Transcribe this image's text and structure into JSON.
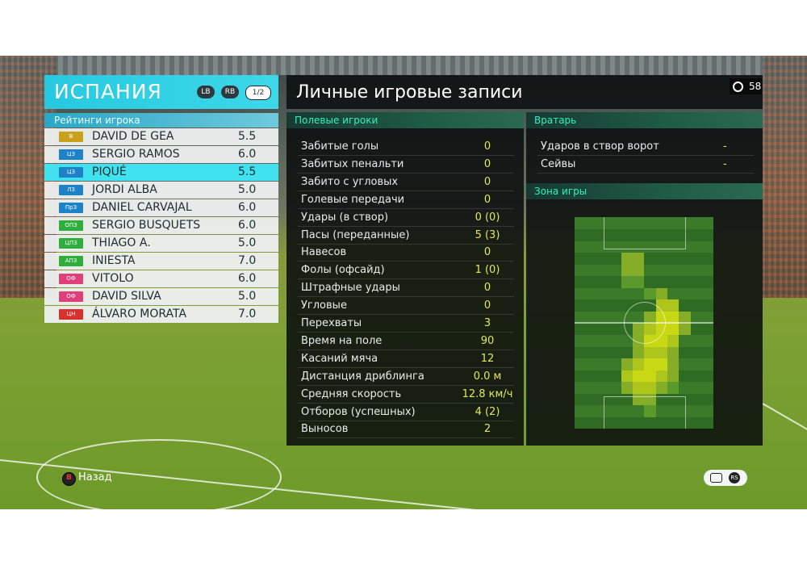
{
  "team": {
    "name": "ИСПАНИЯ",
    "lb": "LB",
    "rb": "RB",
    "page": "1/2"
  },
  "ratings_header": "Рейтинги игрока",
  "players": [
    {
      "pos": "В",
      "pos_color": "#c9a21a",
      "name": "DAVID DE GEA",
      "rating": "5.5",
      "selected": false
    },
    {
      "pos": "ЦЗ",
      "pos_color": "#1e82c8",
      "name": "SERGIO RAMOS",
      "rating": "6.0",
      "selected": false
    },
    {
      "pos": "ЦЗ",
      "pos_color": "#1e82c8",
      "name": "PIQUÉ",
      "rating": "5.5",
      "selected": true
    },
    {
      "pos": "ЛЗ",
      "pos_color": "#1e82c8",
      "name": "JORDI ALBA",
      "rating": "5.0",
      "selected": false
    },
    {
      "pos": "ПрЗ",
      "pos_color": "#1e82c8",
      "name": "DANIEL CARVAJAL",
      "rating": "6.0",
      "selected": false
    },
    {
      "pos": "ОПЗ",
      "pos_color": "#2eae3c",
      "name": "SERGIO BUSQUETS",
      "rating": "6.0",
      "selected": false
    },
    {
      "pos": "ЦПЗ",
      "pos_color": "#2eae3c",
      "name": "THIAGO A.",
      "rating": "5.0",
      "selected": false
    },
    {
      "pos": "АПЗ",
      "pos_color": "#2eae3c",
      "name": "INIESTA",
      "rating": "7.0",
      "selected": false
    },
    {
      "pos": "ОФ",
      "pos_color": "#e0407a",
      "name": "VITOLO",
      "rating": "6.0",
      "selected": false
    },
    {
      "pos": "ОФ",
      "pos_color": "#e0407a",
      "name": "DAVID SILVA",
      "rating": "5.0",
      "selected": false
    },
    {
      "pos": "ЦН",
      "pos_color": "#d8302a",
      "name": "ÁLVARO MORATA",
      "rating": "7.0",
      "selected": false
    }
  ],
  "records_title": "Личные игровые записи",
  "timer": "58",
  "field_header": "Полевые игроки",
  "field_stats": [
    {
      "label": "Забитые голы",
      "value": "0"
    },
    {
      "label": "Забитых пенальти",
      "value": "0"
    },
    {
      "label": "Забито с угловых",
      "value": "0"
    },
    {
      "label": "Голевые передачи",
      "value": "0"
    },
    {
      "label": "Удары (в створ)",
      "value": "0 (0)"
    },
    {
      "label": "Пасы (переданные)",
      "value": "5 (3)"
    },
    {
      "label": "Навесов",
      "value": "0"
    },
    {
      "label": "Фолы (офсайд)",
      "value": "1 (0)"
    },
    {
      "label": "Штрафные удары",
      "value": "0"
    },
    {
      "label": "Угловые",
      "value": "0"
    },
    {
      "label": "Перехваты",
      "value": "3"
    },
    {
      "label": "Время на поле",
      "value": "90"
    },
    {
      "label": "Касаний мяча",
      "value": "12"
    },
    {
      "label": "Дистанция дриблинга",
      "value": "0.0 м"
    },
    {
      "label": "Средняя скорость",
      "value": "12.8 км/ч"
    },
    {
      "label": "Отборов (успешных)",
      "value": "4 (2)"
    },
    {
      "label": "Выносов",
      "value": "2"
    }
  ],
  "gk_header": "Вратарь",
  "gk_stats": [
    {
      "label": "Ударов в створ ворот",
      "value": "-"
    },
    {
      "label": "Сейвы",
      "value": "-"
    }
  ],
  "zone_header": "Зона игры",
  "back_label": "Назад",
  "colors": {
    "accent": "#3dd8e8",
    "section_text": "#33f0c0",
    "value_text": "#e2e85a"
  }
}
